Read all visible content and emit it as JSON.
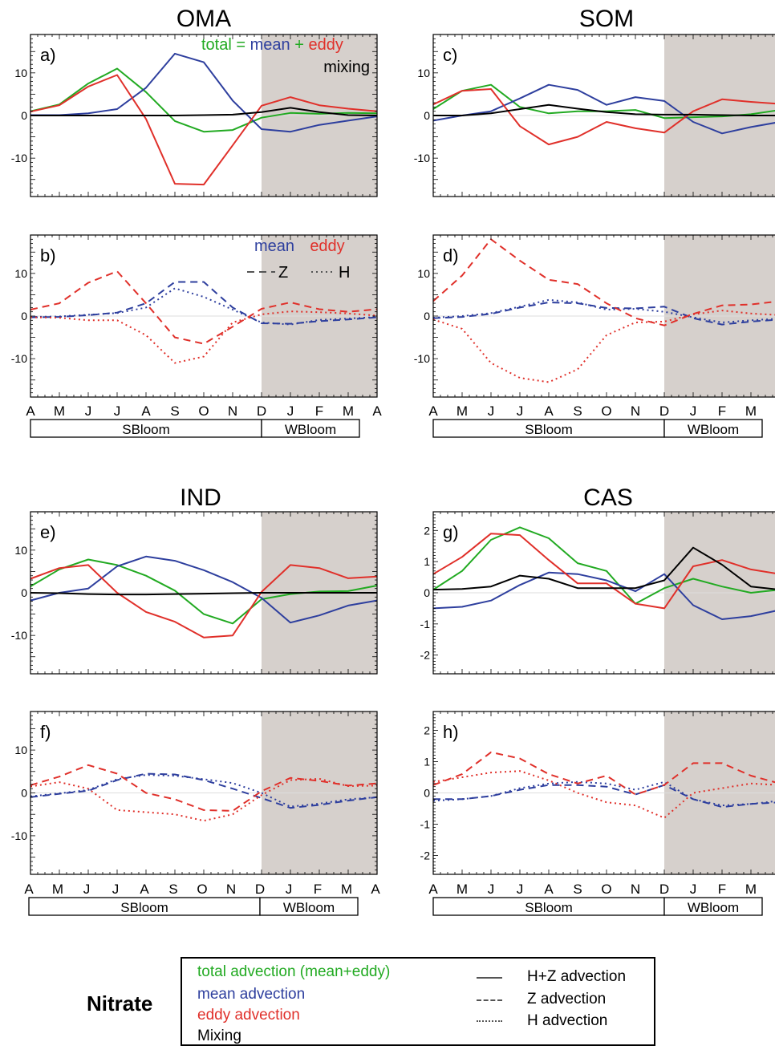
{
  "colors": {
    "total": "#22aa22",
    "mean": "#2e3f9e",
    "eddy": "#e0302a",
    "mixing": "#000000",
    "winter_shade": "#d6d0cc"
  },
  "months": [
    "A",
    "M",
    "J",
    "J",
    "A",
    "S",
    "O",
    "N",
    "D",
    "J",
    "F",
    "M",
    "A"
  ],
  "period_labels": {
    "summer": "SBloom",
    "winter": "WBloom"
  },
  "legend": {
    "title": "Nitrate",
    "total": "total advection (mean+eddy)",
    "mean": "mean advection",
    "eddy": "eddy advection",
    "mixing": "Mixing",
    "hz": "H+Z advection",
    "z": "Z advection",
    "h": "H advection"
  },
  "chart_data": [
    {
      "id": "oma_total",
      "region_title": "OMA",
      "panel_label": "a)",
      "type": "line",
      "ylim": [
        -19,
        19
      ],
      "yticks": [
        -10,
        0,
        10
      ],
      "header": {
        "total": "total =",
        "mean": "mean",
        "plus": "+",
        "eddy": "eddy",
        "mixing": "mixing"
      },
      "series": [
        {
          "key": "total",
          "style": "solid",
          "values": [
            1.0,
            2.6,
            7.5,
            11.0,
            5.5,
            -1.3,
            -3.8,
            -3.4,
            -0.5,
            0.6,
            0.4,
            0.6,
            0.5
          ]
        },
        {
          "key": "mean",
          "style": "solid",
          "values": [
            0.1,
            0.1,
            0.5,
            1.5,
            6.5,
            14.5,
            12.5,
            3.5,
            -3.2,
            -3.8,
            -2.2,
            -1.2,
            -0.2
          ]
        },
        {
          "key": "eddy",
          "style": "solid",
          "values": [
            0.9,
            2.4,
            6.8,
            9.5,
            -0.8,
            -16.0,
            -16.2,
            -7.0,
            2.3,
            4.3,
            2.4,
            1.6,
            1.0
          ]
        },
        {
          "key": "mixing",
          "style": "solid",
          "values": [
            0.0,
            0.0,
            0.0,
            0.0,
            0.0,
            0.0,
            0.1,
            0.2,
            0.8,
            1.8,
            0.8,
            0.1,
            0.0
          ]
        }
      ]
    },
    {
      "id": "oma_comp",
      "panel_label": "b)",
      "type": "line",
      "ylim": [
        -19,
        19
      ],
      "yticks": [
        -10,
        0,
        10
      ],
      "header": {
        "mean": "mean",
        "eddy": "eddy",
        "z": "Z",
        "h": "H"
      },
      "series": [
        {
          "key": "mean",
          "style": "dash",
          "values": [
            -0.3,
            -0.2,
            0.2,
            0.8,
            3.0,
            8.0,
            8.0,
            2.0,
            -1.7,
            -1.8,
            -1.2,
            -0.8,
            -0.3
          ]
        },
        {
          "key": "mean",
          "style": "dot",
          "values": [
            -0.2,
            -0.1,
            0.3,
            0.7,
            2.0,
            6.5,
            4.5,
            1.5,
            -1.5,
            -2.0,
            -0.9,
            -0.6,
            -0.2
          ]
        },
        {
          "key": "eddy",
          "style": "dash",
          "values": [
            1.5,
            3.0,
            7.8,
            10.5,
            3.0,
            -5.0,
            -6.5,
            -2.5,
            1.7,
            3.2,
            1.6,
            1.0,
            1.6
          ]
        },
        {
          "key": "eddy",
          "style": "dot",
          "values": [
            -0.3,
            -0.4,
            -1.0,
            -1.0,
            -4.5,
            -11.0,
            -9.5,
            -1.5,
            0.4,
            1.1,
            0.9,
            0.6,
            0.1
          ]
        }
      ]
    },
    {
      "id": "som_total",
      "region_title": "SOM",
      "panel_label": "c)",
      "type": "line",
      "ylim": [
        -19,
        19
      ],
      "yticks": [
        -10,
        0,
        10
      ],
      "series": [
        {
          "key": "total",
          "style": "solid",
          "values": [
            1.5,
            5.8,
            7.2,
            2.0,
            0.5,
            1.0,
            1.0,
            1.3,
            -0.6,
            -0.4,
            -0.2,
            0.3,
            1.3
          ]
        },
        {
          "key": "mean",
          "style": "solid",
          "values": [
            -1.2,
            0.0,
            1.0,
            4.0,
            7.2,
            6.0,
            2.5,
            4.3,
            3.4,
            -1.5,
            -4.2,
            -2.7,
            -1.5
          ]
        },
        {
          "key": "eddy",
          "style": "solid",
          "values": [
            2.6,
            5.8,
            6.2,
            -2.5,
            -6.8,
            -5.0,
            -1.5,
            -3.0,
            -4.0,
            1.0,
            3.8,
            3.2,
            2.7
          ]
        },
        {
          "key": "mixing",
          "style": "solid",
          "values": [
            0.0,
            0.0,
            0.5,
            1.5,
            2.5,
            1.6,
            0.8,
            0.3,
            0.2,
            0.2,
            0.1,
            0.0,
            0.0
          ]
        }
      ]
    },
    {
      "id": "som_comp",
      "panel_label": "d)",
      "type": "line",
      "ylim": [
        -19,
        19
      ],
      "yticks": [
        -10,
        0,
        10
      ],
      "series": [
        {
          "key": "mean",
          "style": "dash",
          "values": [
            -0.5,
            -0.2,
            0.5,
            2.0,
            3.2,
            3.0,
            1.9,
            1.8,
            2.2,
            -0.5,
            -2.0,
            -1.3,
            -0.8
          ]
        },
        {
          "key": "mean",
          "style": "dot",
          "values": [
            -0.4,
            0.0,
            0.7,
            2.2,
            3.8,
            3.2,
            1.5,
            1.7,
            1.0,
            -0.3,
            -1.5,
            -1.0,
            -0.6
          ]
        },
        {
          "key": "eddy",
          "style": "dash",
          "values": [
            3.5,
            9.5,
            18.0,
            13.0,
            8.5,
            7.5,
            3.0,
            -0.5,
            -2.2,
            0.5,
            2.5,
            2.7,
            3.5
          ]
        },
        {
          "key": "eddy",
          "style": "dot",
          "values": [
            -0.8,
            -3.0,
            -11.0,
            -14.5,
            -15.5,
            -12.5,
            -4.5,
            -1.5,
            -1.3,
            0.4,
            1.3,
            0.6,
            0.2
          ]
        }
      ]
    },
    {
      "id": "ind_total",
      "region_title": "IND",
      "panel_label": "e)",
      "type": "line",
      "ylim": [
        -19,
        19
      ],
      "yticks": [
        -10,
        0,
        10
      ],
      "series": [
        {
          "key": "total",
          "style": "solid",
          "values": [
            1.5,
            5.5,
            7.8,
            6.5,
            4.0,
            0.5,
            -5.0,
            -7.2,
            -1.5,
            -0.3,
            0.3,
            0.4,
            1.7
          ]
        },
        {
          "key": "mean",
          "style": "solid",
          "values": [
            -1.8,
            0.0,
            1.0,
            6.2,
            8.5,
            7.5,
            5.3,
            2.5,
            -1.2,
            -7.0,
            -5.3,
            -3.0,
            -1.8
          ]
        },
        {
          "key": "eddy",
          "style": "solid",
          "values": [
            3.3,
            5.8,
            6.5,
            0.0,
            -4.5,
            -6.8,
            -10.5,
            -10.0,
            0.2,
            6.5,
            5.8,
            3.4,
            3.8
          ]
        },
        {
          "key": "mixing",
          "style": "solid",
          "values": [
            0.0,
            -0.1,
            -0.3,
            -0.4,
            -0.4,
            -0.3,
            -0.2,
            -0.1,
            0.0,
            0.0,
            0.0,
            0.0,
            0.0
          ]
        }
      ]
    },
    {
      "id": "ind_comp",
      "panel_label": "f)",
      "type": "line",
      "ylim": [
        -19,
        19
      ],
      "yticks": [
        -10,
        0,
        10
      ],
      "series": [
        {
          "key": "mean",
          "style": "dash",
          "values": [
            -1.0,
            -0.2,
            0.5,
            3.0,
            4.5,
            4.3,
            3.0,
            1.0,
            -1.2,
            -3.5,
            -2.8,
            -1.8,
            -1.0
          ]
        },
        {
          "key": "mean",
          "style": "dot",
          "values": [
            -0.8,
            -0.1,
            0.7,
            3.2,
            4.2,
            4.0,
            3.2,
            2.3,
            0.0,
            -3.2,
            -2.5,
            -1.5,
            -1.0
          ]
        },
        {
          "key": "eddy",
          "style": "dash",
          "values": [
            1.8,
            3.8,
            6.5,
            4.5,
            0.0,
            -1.5,
            -4.0,
            -4.2,
            0.4,
            3.5,
            2.8,
            1.7,
            2.2
          ]
        },
        {
          "key": "eddy",
          "style": "dot",
          "values": [
            1.5,
            2.5,
            1.0,
            -4.0,
            -4.5,
            -5.0,
            -6.5,
            -5.0,
            -0.5,
            3.0,
            3.3,
            1.6,
            1.7
          ]
        }
      ]
    },
    {
      "id": "cas_total",
      "region_title": "CAS",
      "panel_label": "g)",
      "type": "line",
      "ylim": [
        -2.6,
        2.6
      ],
      "yticks": [
        -2,
        -1,
        0,
        1,
        2
      ],
      "series": [
        {
          "key": "total",
          "style": "solid",
          "values": [
            0.1,
            0.7,
            1.7,
            2.1,
            1.75,
            0.95,
            0.7,
            -0.35,
            0.15,
            0.45,
            0.2,
            0.0,
            0.1
          ]
        },
        {
          "key": "mean",
          "style": "solid",
          "values": [
            -0.5,
            -0.45,
            -0.25,
            0.25,
            0.65,
            0.6,
            0.4,
            0.05,
            0.6,
            -0.4,
            -0.85,
            -0.75,
            -0.55
          ]
        },
        {
          "key": "eddy",
          "style": "solid",
          "values": [
            0.6,
            1.15,
            1.9,
            1.85,
            1.05,
            0.3,
            0.3,
            -0.35,
            -0.5,
            0.85,
            1.05,
            0.75,
            0.6
          ]
        },
        {
          "key": "mixing",
          "style": "solid",
          "values": [
            0.1,
            0.12,
            0.2,
            0.55,
            0.45,
            0.15,
            0.15,
            0.15,
            0.4,
            1.45,
            0.9,
            0.2,
            0.1
          ]
        }
      ]
    },
    {
      "id": "cas_comp",
      "panel_label": "h)",
      "type": "line",
      "ylim": [
        -2.6,
        2.6
      ],
      "yticks": [
        -2,
        -1,
        0,
        1,
        2
      ],
      "series": [
        {
          "key": "mean",
          "style": "dash",
          "values": [
            -0.2,
            -0.2,
            -0.1,
            0.1,
            0.25,
            0.25,
            0.2,
            -0.05,
            0.25,
            -0.2,
            -0.45,
            -0.35,
            -0.3
          ]
        },
        {
          "key": "mean",
          "style": "dot",
          "values": [
            -0.25,
            -0.2,
            -0.1,
            0.15,
            0.3,
            0.35,
            0.3,
            0.1,
            0.35,
            -0.2,
            -0.4,
            -0.35,
            -0.25
          ]
        },
        {
          "key": "eddy",
          "style": "dash",
          "values": [
            0.25,
            0.6,
            1.3,
            1.1,
            0.6,
            0.3,
            0.55,
            -0.05,
            0.25,
            0.95,
            0.95,
            0.55,
            0.3
          ]
        },
        {
          "key": "eddy",
          "style": "dot",
          "values": [
            0.35,
            0.5,
            0.65,
            0.7,
            0.4,
            0.0,
            -0.3,
            -0.4,
            -0.8,
            0.0,
            0.15,
            0.3,
            0.25
          ]
        }
      ]
    }
  ]
}
